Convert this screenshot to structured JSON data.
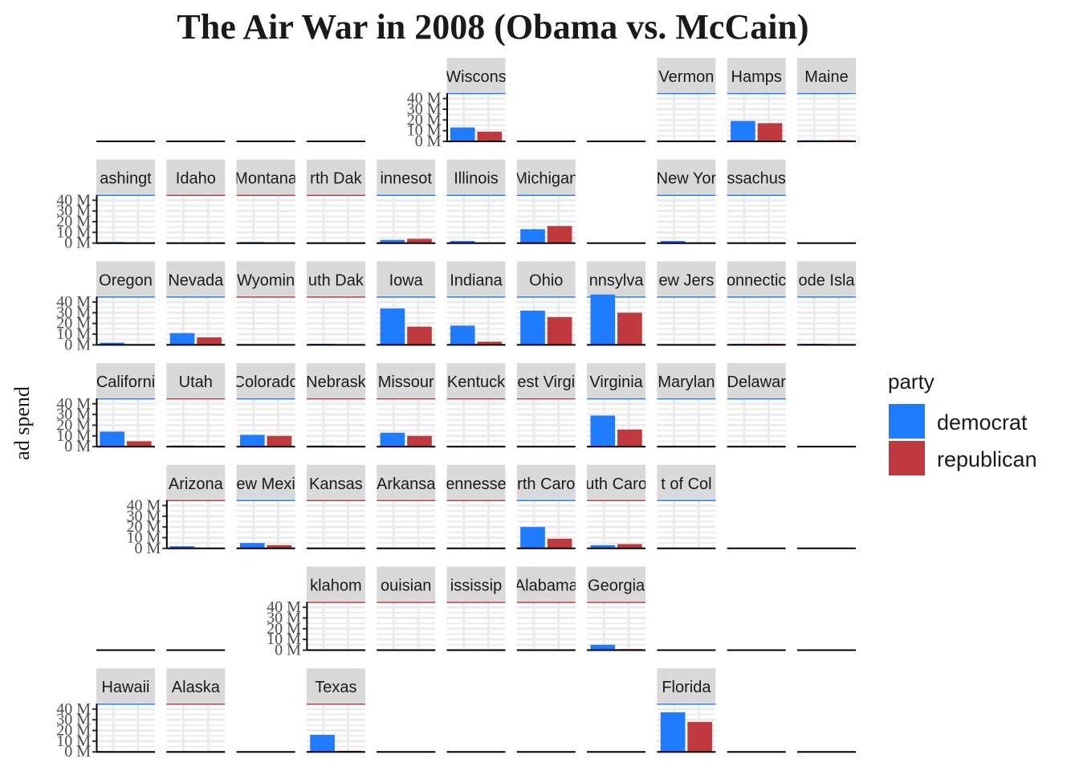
{
  "chart_data": {
    "type": "bar",
    "layout": "geofacet-us-state-grid",
    "title": "The Air War in 2008 (Obama vs. McCain)",
    "xlabel": "",
    "ylabel": "ad spend",
    "ylim": [
      0,
      45
    ],
    "y_ticks": [
      0,
      10,
      20,
      30,
      40
    ],
    "y_tick_labels": [
      "0 M",
      "10 M",
      "20 M",
      "30 M",
      "40 M"
    ],
    "categories": [
      "democrat",
      "republican"
    ],
    "colors": {
      "democrat": "#1f7bff",
      "republican": "#c0393f"
    },
    "legend": {
      "title": "party",
      "position": "right",
      "entries": [
        {
          "key": "democrat",
          "label": "democrat"
        },
        {
          "key": "republican",
          "label": "republican"
        }
      ]
    },
    "facets": [
      {
        "state": "Wisconsin",
        "strip_label": "Wiscons",
        "row": 1,
        "col": 6,
        "winner": "democrat",
        "values": [
          13,
          9
        ]
      },
      {
        "state": "Vermont",
        "strip_label": "Vermon",
        "row": 1,
        "col": 9,
        "winner": "democrat",
        "values": [
          0,
          0
        ]
      },
      {
        "state": "New Hampshire",
        "strip_label": "Hamps",
        "row": 1,
        "col": 10,
        "winner": "democrat",
        "values": [
          19,
          17
        ]
      },
      {
        "state": "Maine",
        "strip_label": "Maine",
        "row": 1,
        "col": 11,
        "winner": "democrat",
        "values": [
          1,
          1
        ]
      },
      {
        "state": "Washington",
        "strip_label": "ashingt",
        "row": 2,
        "col": 1,
        "winner": "democrat",
        "values": [
          1,
          0
        ]
      },
      {
        "state": "Idaho",
        "strip_label": "Idaho",
        "row": 2,
        "col": 2,
        "winner": "republican",
        "values": [
          0,
          0
        ]
      },
      {
        "state": "Montana",
        "strip_label": "Montana",
        "row": 2,
        "col": 3,
        "winner": "republican",
        "values": [
          1,
          0.5
        ]
      },
      {
        "state": "North Dakota",
        "strip_label": "rth Dak",
        "row": 2,
        "col": 4,
        "winner": "republican",
        "values": [
          0.5,
          0.5
        ]
      },
      {
        "state": "Minnesota",
        "strip_label": "innesot",
        "row": 2,
        "col": 5,
        "winner": "democrat",
        "values": [
          3,
          4
        ]
      },
      {
        "state": "Illinois",
        "strip_label": "Illinois",
        "row": 2,
        "col": 6,
        "winner": "democrat",
        "values": [
          2,
          0
        ]
      },
      {
        "state": "Michigan",
        "strip_label": "Michigan",
        "row": 2,
        "col": 7,
        "winner": "democrat",
        "values": [
          13,
          16
        ]
      },
      {
        "state": "New York",
        "strip_label": "New Yor",
        "row": 2,
        "col": 9,
        "winner": "democrat",
        "values": [
          2,
          0
        ]
      },
      {
        "state": "Massachusetts",
        "strip_label": "ssachus",
        "row": 2,
        "col": 10,
        "winner": "democrat",
        "values": [
          0.5,
          0.5
        ]
      },
      {
        "state": "Oregon",
        "strip_label": "Oregon",
        "row": 3,
        "col": 1,
        "winner": "democrat",
        "values": [
          2,
          0
        ]
      },
      {
        "state": "Nevada",
        "strip_label": "Nevada",
        "row": 3,
        "col": 2,
        "winner": "democrat",
        "values": [
          11,
          7
        ]
      },
      {
        "state": "Wyoming",
        "strip_label": "Wyomin",
        "row": 3,
        "col": 3,
        "winner": "republican",
        "values": [
          0,
          0
        ]
      },
      {
        "state": "South Dakota",
        "strip_label": "uth Dak",
        "row": 3,
        "col": 4,
        "winner": "republican",
        "values": [
          1,
          0
        ]
      },
      {
        "state": "Iowa",
        "strip_label": "Iowa",
        "row": 3,
        "col": 5,
        "winner": "democrat",
        "values": [
          34,
          17
        ]
      },
      {
        "state": "Indiana",
        "strip_label": "Indiana",
        "row": 3,
        "col": 6,
        "winner": "democrat",
        "values": [
          18,
          3
        ]
      },
      {
        "state": "Ohio",
        "strip_label": "Ohio",
        "row": 3,
        "col": 7,
        "winner": "democrat",
        "values": [
          32,
          26
        ]
      },
      {
        "state": "Pennsylvania",
        "strip_label": "nnsylva",
        "row": 3,
        "col": 8,
        "winner": "democrat",
        "values": [
          47,
          30
        ]
      },
      {
        "state": "New Jersey",
        "strip_label": "ew Jers",
        "row": 3,
        "col": 9,
        "winner": "democrat",
        "values": [
          0,
          0
        ]
      },
      {
        "state": "Connecticut",
        "strip_label": "onnectic",
        "row": 3,
        "col": 10,
        "winner": "democrat",
        "values": [
          1,
          1
        ]
      },
      {
        "state": "Rhode Island",
        "strip_label": "ode Isla",
        "row": 3,
        "col": 11,
        "winner": "democrat",
        "values": [
          1,
          0
        ]
      },
      {
        "state": "California",
        "strip_label": "Californi",
        "row": 4,
        "col": 1,
        "winner": "democrat",
        "values": [
          14,
          5
        ]
      },
      {
        "state": "Utah",
        "strip_label": "Utah",
        "row": 4,
        "col": 2,
        "winner": "republican",
        "values": [
          1,
          0
        ]
      },
      {
        "state": "Colorado",
        "strip_label": "Colorado",
        "row": 4,
        "col": 3,
        "winner": "democrat",
        "values": [
          11,
          10
        ]
      },
      {
        "state": "Nebraska",
        "strip_label": "Nebrask",
        "row": 4,
        "col": 4,
        "winner": "republican",
        "values": [
          1,
          0
        ]
      },
      {
        "state": "Missouri",
        "strip_label": "Missour",
        "row": 4,
        "col": 5,
        "winner": "republican",
        "values": [
          13,
          10
        ]
      },
      {
        "state": "Kentucky",
        "strip_label": "Kentuck",
        "row": 4,
        "col": 6,
        "winner": "republican",
        "values": [
          0.5,
          0.5
        ]
      },
      {
        "state": "West Virginia",
        "strip_label": "est Virgi",
        "row": 4,
        "col": 7,
        "winner": "republican",
        "values": [
          0.5,
          0.5
        ]
      },
      {
        "state": "Virginia",
        "strip_label": "Virginia",
        "row": 4,
        "col": 8,
        "winner": "democrat",
        "values": [
          29,
          16
        ]
      },
      {
        "state": "Maryland",
        "strip_label": "Marylan",
        "row": 4,
        "col": 9,
        "winner": "democrat",
        "values": [
          0.5,
          0.5
        ]
      },
      {
        "state": "Delaware",
        "strip_label": "Delawar",
        "row": 4,
        "col": 10,
        "winner": "democrat",
        "values": [
          0,
          0
        ]
      },
      {
        "state": "Arizona",
        "strip_label": "Arizona",
        "row": 5,
        "col": 2,
        "winner": "republican",
        "values": [
          2,
          0
        ]
      },
      {
        "state": "New Mexico",
        "strip_label": "ew Mexi",
        "row": 5,
        "col": 3,
        "winner": "democrat",
        "values": [
          5,
          3
        ]
      },
      {
        "state": "Kansas",
        "strip_label": "Kansas",
        "row": 5,
        "col": 4,
        "winner": "republican",
        "values": [
          0,
          0
        ]
      },
      {
        "state": "Arkansas",
        "strip_label": "Arkansa",
        "row": 5,
        "col": 5,
        "winner": "republican",
        "values": [
          0,
          0
        ]
      },
      {
        "state": "Tennessee",
        "strip_label": "ennesse",
        "row": 5,
        "col": 6,
        "winner": "republican",
        "values": [
          0.5,
          0
        ]
      },
      {
        "state": "North Carolina",
        "strip_label": "rth Caro",
        "row": 5,
        "col": 7,
        "winner": "democrat",
        "values": [
          20,
          9
        ]
      },
      {
        "state": "South Carolina",
        "strip_label": "uth Caro",
        "row": 5,
        "col": 8,
        "winner": "republican",
        "values": [
          3,
          4
        ]
      },
      {
        "state": "District of Columbia",
        "strip_label": "t of Col",
        "row": 5,
        "col": 9,
        "winner": "democrat",
        "values": [
          0,
          0
        ]
      },
      {
        "state": "Oklahoma",
        "strip_label": "klahom",
        "row": 6,
        "col": 4,
        "winner": "republican",
        "values": [
          0.3,
          0
        ]
      },
      {
        "state": "Louisiana",
        "strip_label": "ouisian",
        "row": 6,
        "col": 5,
        "winner": "republican",
        "values": [
          0.3,
          0
        ]
      },
      {
        "state": "Mississippi",
        "strip_label": "ississip",
        "row": 6,
        "col": 6,
        "winner": "republican",
        "values": [
          0.3,
          0
        ]
      },
      {
        "state": "Alabama",
        "strip_label": "Alabama",
        "row": 6,
        "col": 7,
        "winner": "republican",
        "values": [
          0.3,
          0
        ]
      },
      {
        "state": "Georgia",
        "strip_label": "Georgia",
        "row": 6,
        "col": 8,
        "winner": "republican",
        "values": [
          5,
          1
        ]
      },
      {
        "state": "Hawaii",
        "strip_label": "Hawaii",
        "row": 7,
        "col": 1,
        "winner": "democrat",
        "values": [
          0,
          0
        ]
      },
      {
        "state": "Alaska",
        "strip_label": "Alaska",
        "row": 7,
        "col": 2,
        "winner": "republican",
        "values": [
          0,
          0
        ]
      },
      {
        "state": "Texas",
        "strip_label": "Texas",
        "row": 7,
        "col": 4,
        "winner": "republican",
        "values": [
          16,
          1
        ]
      },
      {
        "state": "Florida",
        "strip_label": "Florida",
        "row": 7,
        "col": 9,
        "winner": "democrat",
        "values": [
          37,
          28
        ]
      }
    ],
    "y_axis_panels": [
      "Wisconsin",
      "Washington",
      "Oregon",
      "California",
      "Arizona",
      "Oklahoma",
      "Hawaii"
    ],
    "empty_panels": [
      {
        "row": 1,
        "col": 1
      },
      {
        "row": 1,
        "col": 2
      },
      {
        "row": 1,
        "col": 3
      },
      {
        "row": 1,
        "col": 4
      },
      {
        "row": 1,
        "col": 7
      },
      {
        "row": 1,
        "col": 8
      },
      {
        "row": 2,
        "col": 8
      },
      {
        "row": 2,
        "col": 11
      },
      {
        "row": 4,
        "col": 11
      },
      {
        "row": 5,
        "col": 10
      },
      {
        "row": 5,
        "col": 11
      },
      {
        "row": 6,
        "col": 1
      },
      {
        "row": 6,
        "col": 2
      },
      {
        "row": 6,
        "col": 9
      },
      {
        "row": 6,
        "col": 10
      },
      {
        "row": 6,
        "col": 11
      },
      {
        "row": 7,
        "col": 3
      },
      {
        "row": 7,
        "col": 5
      },
      {
        "row": 7,
        "col": 6
      },
      {
        "row": 7,
        "col": 7
      },
      {
        "row": 7,
        "col": 8
      },
      {
        "row": 7,
        "col": 10
      },
      {
        "row": 7,
        "col": 11
      }
    ]
  }
}
